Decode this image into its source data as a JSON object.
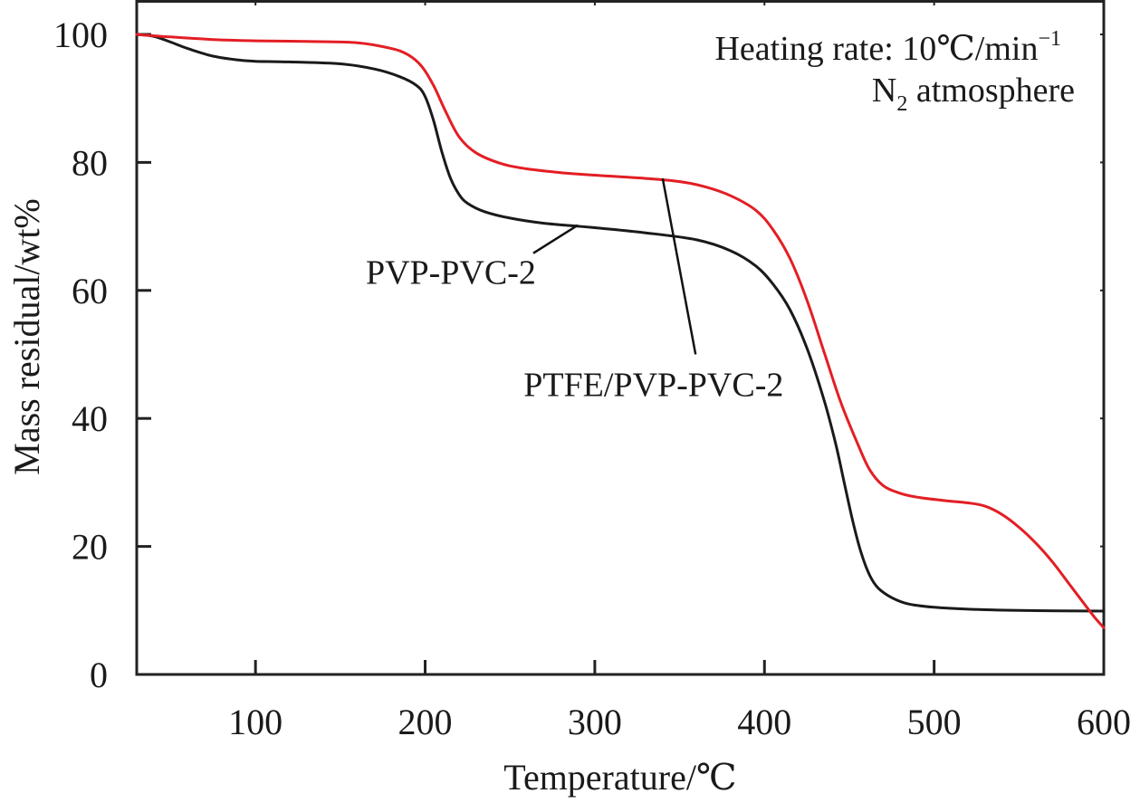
{
  "chart_data": {
    "type": "line",
    "title": "",
    "xlabel": "Temperature/℃",
    "ylabel": "Mass residual/wt%",
    "xlim": [
      30,
      600
    ],
    "ylim": [
      0,
      100
    ],
    "xticks": [
      100,
      200,
      300,
      400,
      500,
      600
    ],
    "yticks": [
      0,
      20,
      40,
      60,
      80,
      100
    ],
    "grid": false,
    "legend": "none (curves labeled with leader lines)",
    "annotation": {
      "line1": "Heating rate: 10℃/min",
      "line1_sup": "−1",
      "line2_main": "N",
      "line2_sub": "2",
      "line2_rest": " atmosphere",
      "placement": "top-right"
    },
    "series": [
      {
        "name": "PVP-PVC-2",
        "color": "#1a1a1a",
        "label_anchor": {
          "x": 290,
          "y": 70.2
        },
        "x": [
          30,
          40,
          50,
          60,
          75,
          90,
          100,
          120,
          150,
          170,
          185,
          195,
          200,
          205,
          210,
          215,
          220,
          225,
          235,
          250,
          270,
          300,
          330,
          360,
          380,
          395,
          405,
          415,
          425,
          435,
          442,
          447,
          452,
          457,
          462,
          467,
          475,
          485,
          500,
          520,
          550,
          600
        ],
        "y": [
          100,
          99.7,
          98.8,
          97.8,
          96.6,
          96.0,
          95.8,
          95.7,
          95.4,
          94.6,
          93.4,
          92.0,
          90.3,
          86.5,
          81.5,
          77.5,
          75.0,
          73.6,
          72.3,
          71.3,
          70.5,
          69.8,
          69.0,
          67.9,
          66.2,
          63.8,
          61.0,
          57.0,
          51.0,
          43.0,
          36.0,
          30.0,
          24.0,
          19.0,
          15.5,
          13.5,
          12.0,
          11.0,
          10.5,
          10.2,
          10.0,
          9.9
        ]
      },
      {
        "name": "PTFE/PVP-PVC-2",
        "color": "#e31e24",
        "label_anchor": {
          "x": 340,
          "y": 77.5
        },
        "x": [
          30,
          50,
          75,
          100,
          130,
          160,
          180,
          190,
          198,
          205,
          212,
          220,
          230,
          245,
          260,
          280,
          300,
          330,
          350,
          365,
          380,
          395,
          405,
          415,
          425,
          435,
          445,
          455,
          462,
          470,
          480,
          490,
          505,
          520,
          530,
          540,
          550,
          560,
          570,
          580,
          590,
          595,
          600
        ],
        "y": [
          100,
          99.6,
          99.2,
          99.0,
          98.9,
          98.7,
          97.8,
          96.8,
          95.0,
          92.0,
          88.0,
          84.0,
          81.5,
          79.8,
          79.0,
          78.4,
          78.0,
          77.5,
          77.0,
          76.2,
          74.8,
          72.5,
          69.5,
          65.0,
          58.5,
          50.5,
          42.5,
          36.0,
          32.0,
          29.5,
          28.3,
          27.7,
          27.2,
          26.8,
          26.3,
          25.0,
          23.0,
          20.5,
          17.5,
          14.0,
          10.5,
          8.8,
          7.3
        ]
      }
    ],
    "series_label_positions": [
      {
        "series": "PVP-PVC-2",
        "text_at": {
          "x": 165,
          "y": 61
        }
      },
      {
        "series": "PTFE/PVP-PVC-2",
        "text_at": {
          "x": 258,
          "y": 43.5
        }
      }
    ]
  }
}
